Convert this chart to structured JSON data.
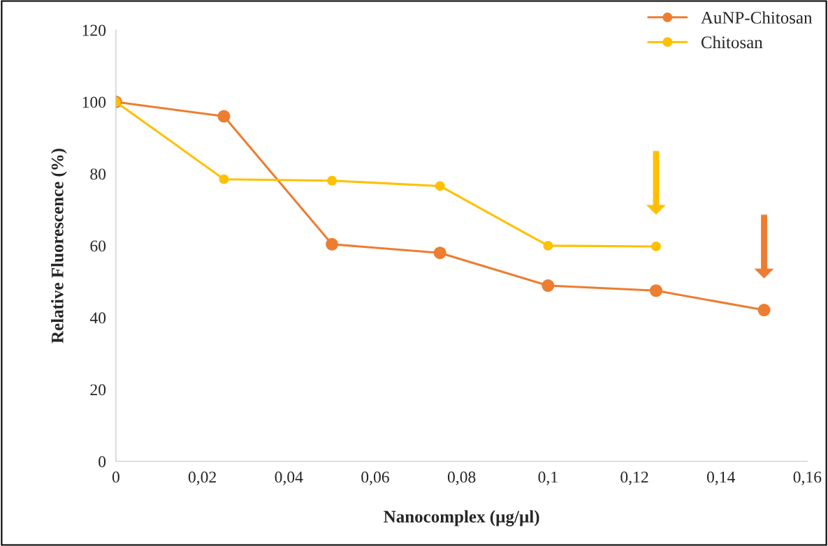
{
  "chart_data": {
    "type": "line",
    "xlabel": "Nanocomplex (µg/µl)",
    "ylabel": "Relative Fluorescence (%)",
    "series": [
      {
        "name": "AuNP-Chitosan",
        "color": "#ed7d31",
        "x": [
          0,
          0.025,
          0.05,
          0.075,
          0.1,
          0.125,
          0.15
        ],
        "values": [
          100,
          96,
          60.4,
          58,
          48.9,
          47.5,
          42.1
        ]
      },
      {
        "name": "Chitosan",
        "color": "#ffc000",
        "x": [
          0,
          0.025,
          0.05,
          0.075,
          0.1,
          0.125
        ],
        "values": [
          100,
          78.5,
          78.1,
          76.6,
          60,
          59.8
        ]
      }
    ],
    "xlim": [
      0,
      0.16
    ],
    "xticks": [
      0,
      {
        "value": 0.02,
        "label": "0,02"
      },
      {
        "value": 0.04,
        "label": "0,04"
      },
      {
        "value": 0.06,
        "label": "0,06"
      },
      {
        "value": 0.08,
        "label": "0,08"
      },
      {
        "value": 0.1,
        "label": "0,1"
      },
      {
        "value": 0.12,
        "label": "0,12"
      },
      {
        "value": 0.14,
        "label": "0,14"
      },
      {
        "value": 0.16,
        "label": "0,16"
      }
    ],
    "ylim": [
      0,
      120
    ],
    "yticks": [
      0,
      20,
      40,
      60,
      80,
      100,
      120
    ],
    "marker": "circle",
    "line_style": "solid",
    "grid": false,
    "legend": "top right"
  }
}
